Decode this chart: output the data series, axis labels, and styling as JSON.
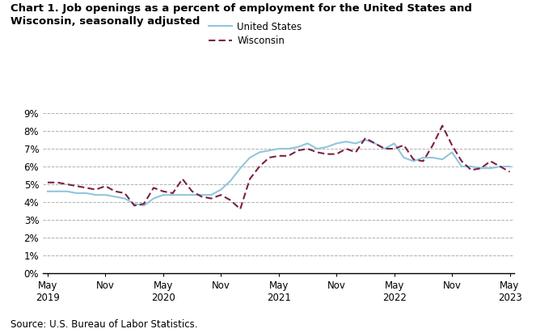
{
  "title": "Chart 1. Job openings as a percent of employment for the United States and\nWisconsin, seasonally adjusted",
  "source": "Source: U.S. Bureau of Labor Statistics.",
  "us_label": "United States",
  "wi_label": "Wisconsin",
  "us_color": "#92c5de",
  "wi_color": "#7b2045",
  "ylim": [
    0,
    0.09
  ],
  "yticks": [
    0,
    0.01,
    0.02,
    0.03,
    0.04,
    0.05,
    0.06,
    0.07,
    0.08,
    0.09
  ],
  "ytick_labels": [
    "0%",
    "1%",
    "2%",
    "3%",
    "4%",
    "5%",
    "6%",
    "7%",
    "8%",
    "9%"
  ],
  "x_tick_labels": [
    "May\n2019",
    "Nov",
    "May\n2020",
    "Nov",
    "May\n2021",
    "Nov",
    "May\n2022",
    "Nov",
    "May\n2023"
  ],
  "us_data": [
    0.046,
    0.046,
    0.046,
    0.045,
    0.045,
    0.044,
    0.044,
    0.043,
    0.042,
    0.039,
    0.038,
    0.042,
    0.044,
    0.044,
    0.044,
    0.044,
    0.044,
    0.044,
    0.047,
    0.052,
    0.059,
    0.065,
    0.068,
    0.069,
    0.07,
    0.07,
    0.071,
    0.073,
    0.07,
    0.071,
    0.073,
    0.074,
    0.073,
    0.075,
    0.073,
    0.07,
    0.073,
    0.065,
    0.063,
    0.065,
    0.065,
    0.064,
    0.068,
    0.06,
    0.06,
    0.059,
    0.059,
    0.06,
    0.06
  ],
  "wi_data": [
    0.051,
    0.051,
    0.05,
    0.049,
    0.048,
    0.047,
    0.049,
    0.046,
    0.045,
    0.038,
    0.039,
    0.048,
    0.046,
    0.045,
    0.053,
    0.046,
    0.043,
    0.042,
    0.044,
    0.041,
    0.036,
    0.053,
    0.06,
    0.065,
    0.066,
    0.066,
    0.069,
    0.07,
    0.068,
    0.067,
    0.067,
    0.07,
    0.068,
    0.076,
    0.073,
    0.07,
    0.07,
    0.072,
    0.064,
    0.063,
    0.072,
    0.083,
    0.072,
    0.063,
    0.058,
    0.059,
    0.063,
    0.06,
    0.057
  ]
}
